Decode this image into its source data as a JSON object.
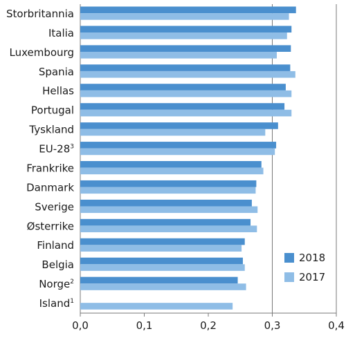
{
  "chart_data": {
    "type": "bar",
    "orientation": "horizontal",
    "categories": [
      "Storbritannia",
      "Italia",
      "Luxembourg",
      "Spania",
      "Hellas",
      "Portugal",
      "Tyskland",
      "EU-28",
      "Frankrike",
      "Danmark",
      "Sverige",
      "Østerrike",
      "Finland",
      "Belgia",
      "Norge",
      "Island"
    ],
    "category_superscripts": [
      "",
      "",
      "",
      "",
      "",
      "",
      "",
      "3",
      "",
      "",
      "",
      "",
      "",
      "",
      "2",
      "1"
    ],
    "series": [
      {
        "name": "2018",
        "color": "#4a8fce",
        "values": [
          0.337,
          0.33,
          0.329,
          0.328,
          0.321,
          0.319,
          0.309,
          0.306,
          0.283,
          0.275,
          0.268,
          0.266,
          0.257,
          0.254,
          0.246,
          null
        ]
      },
      {
        "name": "2017",
        "color": "#8fbde6",
        "values": [
          0.326,
          0.323,
          0.307,
          0.336,
          0.33,
          0.33,
          0.289,
          0.304,
          0.286,
          0.274,
          0.277,
          0.276,
          0.252,
          0.257,
          0.259,
          0.238
        ]
      }
    ],
    "xlim": [
      0,
      0.4
    ],
    "xticks": [
      "0,0",
      "0,1",
      "0,2",
      "0,3",
      "0,4"
    ],
    "xtick_values": [
      0,
      0.1,
      0.2,
      0.3,
      0.4
    ],
    "reference_line": 0.3,
    "legend_position": "bottom-right",
    "title": "",
    "xlabel": "",
    "ylabel": ""
  }
}
